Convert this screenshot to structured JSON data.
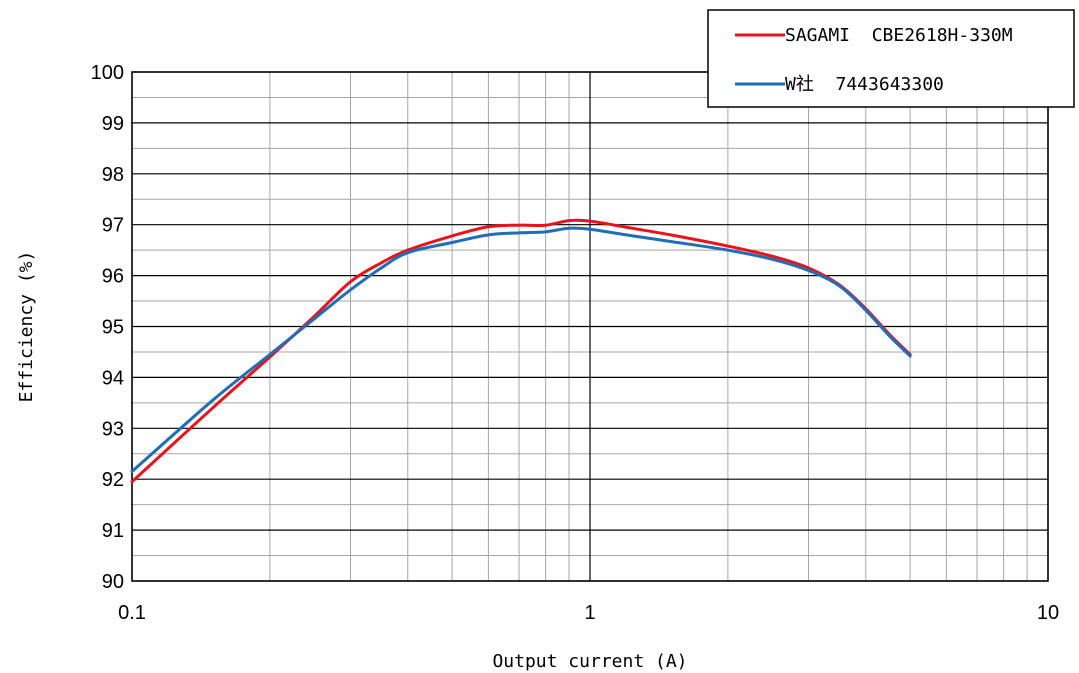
{
  "chart_data": {
    "type": "line",
    "title": "",
    "xlabel": "Output current (A)",
    "ylabel": "Efficiency (%)",
    "x_scale": "log",
    "xlim": [
      0.1,
      10
    ],
    "ylim": [
      90,
      100
    ],
    "x_ticks": [
      0.1,
      1,
      10
    ],
    "x_tick_labels": [
      "0.1",
      "1",
      "10"
    ],
    "y_ticks": [
      90,
      91,
      92,
      93,
      94,
      95,
      96,
      97,
      98,
      99,
      100
    ],
    "y_tick_labels": [
      "90",
      "91",
      "92",
      "93",
      "94",
      "95",
      "96",
      "97",
      "98",
      "99",
      "100"
    ],
    "grid": true,
    "legend_position": "top-right",
    "series": [
      {
        "name": "SAGAMI  CBE2618H-330M",
        "color": "#e8141c",
        "x": [
          0.1,
          0.15,
          0.2,
          0.25,
          0.3,
          0.35,
          0.4,
          0.5,
          0.6,
          0.7,
          0.8,
          0.9,
          1.0,
          1.2,
          1.5,
          2.0,
          2.5,
          3.0,
          3.5,
          4.0,
          4.5,
          5.0
        ],
        "y": [
          91.95,
          93.4,
          94.4,
          95.2,
          95.88,
          96.25,
          96.5,
          96.78,
          96.96,
          96.99,
          96.99,
          97.08,
          97.07,
          96.95,
          96.8,
          96.58,
          96.38,
          96.15,
          95.82,
          95.35,
          94.85,
          94.45
        ]
      },
      {
        "name": "W社  7443643300",
        "color": "#1f6eb6",
        "x": [
          0.1,
          0.15,
          0.2,
          0.25,
          0.3,
          0.35,
          0.4,
          0.5,
          0.6,
          0.7,
          0.8,
          0.9,
          1.0,
          1.2,
          1.5,
          2.0,
          2.5,
          3.0,
          3.5,
          4.0,
          4.5,
          5.0
        ],
        "y": [
          92.15,
          93.55,
          94.45,
          95.15,
          95.72,
          96.15,
          96.45,
          96.65,
          96.8,
          96.84,
          96.86,
          96.93,
          96.91,
          96.8,
          96.67,
          96.5,
          96.32,
          96.1,
          95.8,
          95.32,
          94.82,
          94.42
        ]
      }
    ]
  }
}
